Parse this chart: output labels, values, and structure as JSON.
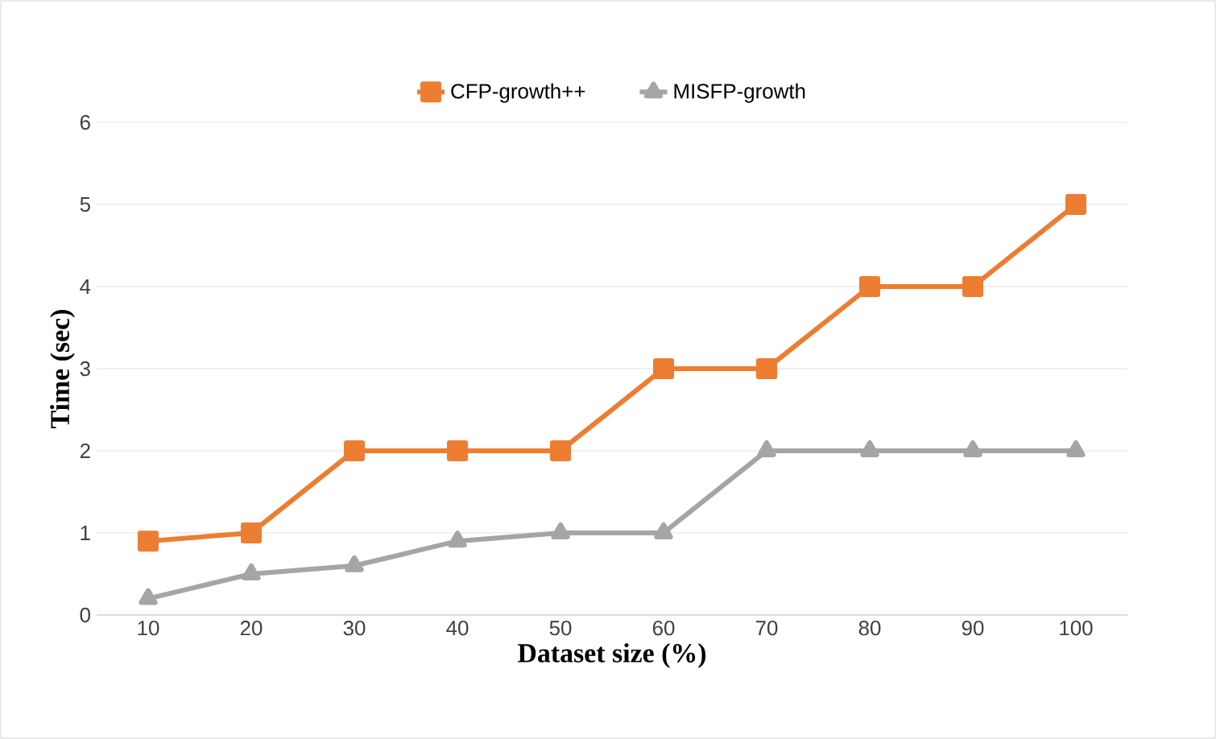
{
  "chart_data": {
    "type": "line",
    "xlabel": "Dataset size (%)",
    "ylabel": "Time (sec)",
    "categories": [
      "10",
      "20",
      "30",
      "40",
      "50",
      "60",
      "70",
      "80",
      "90",
      "100"
    ],
    "ylim": [
      0,
      6
    ],
    "yticks": [
      0,
      1,
      2,
      3,
      4,
      5,
      6
    ],
    "grid": "y",
    "legend": "top",
    "series": [
      {
        "name": "CFP-growth++",
        "color": "#ed7d31",
        "marker": "square",
        "values": [
          0.9,
          1,
          2,
          2,
          2,
          3,
          3,
          4,
          4,
          5
        ]
      },
      {
        "name": "MISFP-growth",
        "color": "#a5a5a5",
        "marker": "triangle",
        "values": [
          0.2,
          0.5,
          0.6,
          0.9,
          1,
          1,
          2,
          2,
          2,
          2
        ]
      }
    ]
  }
}
